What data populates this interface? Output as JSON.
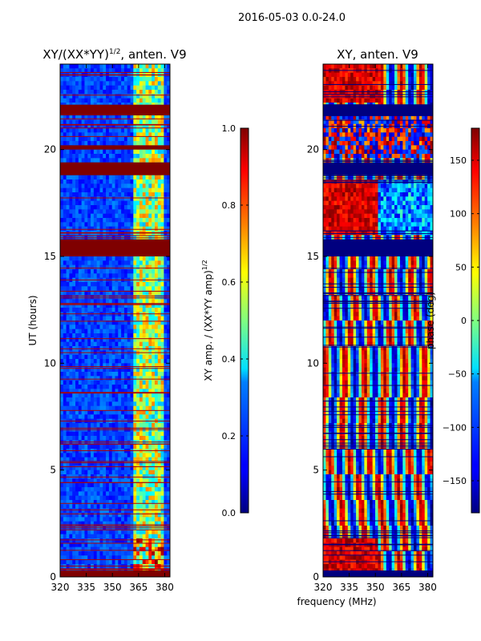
{
  "figure": {
    "suptitle": "2016-05-03 0.0-24.0"
  },
  "chart_data": [
    {
      "type": "heatmap",
      "title_main": "XY/(XX*YY)",
      "title_exp": "1/2",
      "title_suffix": ", anten. V9",
      "xlabel": "",
      "ylabel": "UT (hours)",
      "xlim": [
        320,
        383
      ],
      "ylim": [
        0,
        24
      ],
      "xticks": [
        "320",
        "335",
        "350",
        "365",
        "380"
      ],
      "xtick_values": [
        320,
        335,
        350,
        365,
        380
      ],
      "yticks": [
        "0",
        "5",
        "10",
        "15",
        "20"
      ],
      "ytick_values": [
        0,
        5,
        10,
        15,
        20
      ],
      "flagged_bands_hours": [
        [
          0,
          0.3
        ],
        [
          15.0,
          15.8
        ],
        [
          18.8,
          19.4
        ],
        [
          20.0,
          20.2
        ],
        [
          21.6,
          22.1
        ]
      ],
      "colorbar": {
        "label_main": "XY amp. / (XX*YY amp)",
        "label_exp": "1/2",
        "min": 0.0,
        "max": 1.0,
        "ticks": [
          "0.0",
          "0.2",
          "0.4",
          "0.6",
          "0.8",
          "1.0"
        ],
        "tick_values": [
          0,
          0.2,
          0.4,
          0.6,
          0.8,
          1.0
        ],
        "colormap": "jet"
      }
    },
    {
      "type": "heatmap",
      "title": "XY, anten. V9",
      "xlabel": "frequency (MHz)",
      "ylabel": "",
      "xlim": [
        320,
        383
      ],
      "ylim": [
        0,
        24
      ],
      "xticks": [
        "320",
        "335",
        "350",
        "365",
        "380"
      ],
      "xtick_values": [
        320,
        335,
        350,
        365,
        380
      ],
      "yticks": [
        "0",
        "5",
        "10",
        "15",
        "20"
      ],
      "ytick_values": [
        0,
        5,
        10,
        15,
        20
      ],
      "flagged_bands_hours": [
        [
          0,
          0.3
        ],
        [
          15.0,
          15.8
        ],
        [
          18.8,
          19.4
        ],
        [
          21.6,
          22.1
        ]
      ],
      "colorbar": {
        "label": "phase (deg)",
        "min": -180,
        "max": 180,
        "ticks": [
          "−150",
          "−100",
          "−50",
          "0",
          "50",
          "100",
          "150"
        ],
        "tick_values": [
          -150,
          -100,
          -50,
          0,
          50,
          100,
          150
        ],
        "colormap": "jet"
      }
    }
  ]
}
